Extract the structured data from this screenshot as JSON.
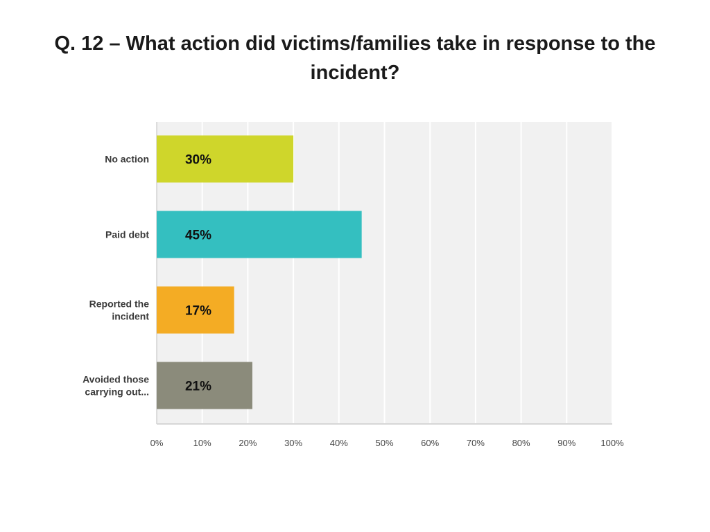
{
  "title": "Q. 12 – What action did victims/families take in response to the incident?",
  "chart_data": {
    "type": "bar",
    "orientation": "horizontal",
    "categories": [
      [
        "No action"
      ],
      [
        "Paid debt"
      ],
      [
        "Reported the",
        "incident"
      ],
      [
        "Avoided those",
        "carrying out..."
      ]
    ],
    "values": [
      30,
      45,
      17,
      21
    ],
    "data_labels": [
      "30%",
      "45%",
      "17%",
      "21%"
    ],
    "colors": [
      "#cfd62b",
      "#34bfc0",
      "#f4ac24",
      "#8b8b7b"
    ],
    "xlim": [
      0,
      100
    ],
    "x_ticks": [
      0,
      10,
      20,
      30,
      40,
      50,
      60,
      70,
      80,
      90,
      100
    ],
    "x_tick_labels": [
      "0%",
      "10%",
      "20%",
      "30%",
      "40%",
      "50%",
      "60%",
      "70%",
      "80%",
      "90%",
      "100%"
    ],
    "grid": true
  }
}
